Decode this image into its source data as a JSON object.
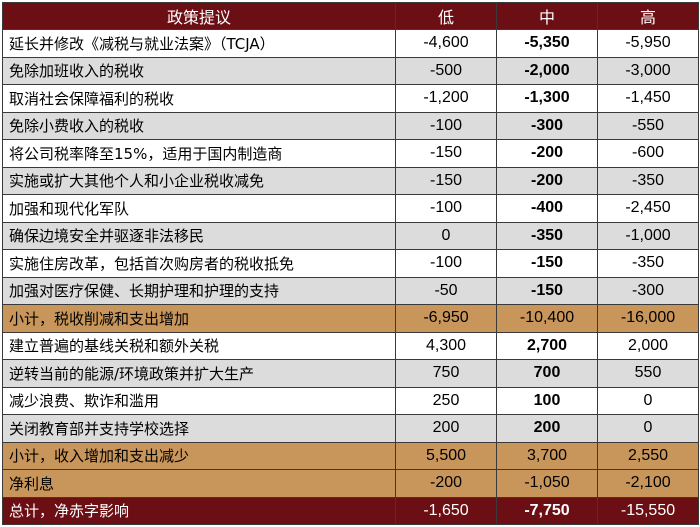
{
  "headers": [
    "政策提议",
    "低",
    "中",
    "高"
  ],
  "rows": [
    {
      "label": "延长并修改《减税与就业法案》（TCJA）",
      "low": "-4,600",
      "mid": "-5,350",
      "high": "-5,950",
      "style": "white",
      "mid_bold": true
    },
    {
      "label": "免除加班收入的税收",
      "low": "-500",
      "mid": "-2,000",
      "high": "-3,000",
      "style": "grey",
      "mid_bold": true
    },
    {
      "label": "取消社会保障福利的税收",
      "low": "-1,200",
      "mid": "-1,300",
      "high": "-1,450",
      "style": "white",
      "mid_bold": true
    },
    {
      "label": "免除小费收入的税收",
      "low": "-100",
      "mid": "-300",
      "high": "-550",
      "style": "grey",
      "mid_bold": true
    },
    {
      "label": "将公司税率降至15%，适用于国内制造商",
      "low": "-150",
      "mid": "-200",
      "high": "-600",
      "style": "white",
      "mid_bold": true
    },
    {
      "label": "实施或扩大其他个人和小企业税收减免",
      "low": "-150",
      "mid": "-200",
      "high": "-350",
      "style": "grey",
      "mid_bold": true
    },
    {
      "label": "加强和现代化军队",
      "low": "-100",
      "mid": "-400",
      "high": "-2,450",
      "style": "white",
      "mid_bold": true
    },
    {
      "label": "确保边境安全并驱逐非法移民",
      "low": "0",
      "mid": "-350",
      "high": "-1,000",
      "style": "grey",
      "mid_bold": true
    },
    {
      "label": "实施住房改革，包括首次购房者的税收抵免",
      "low": "-100",
      "mid": "-150",
      "high": "-350",
      "style": "white",
      "mid_bold": true
    },
    {
      "label": "加强对医疗保健、长期护理和护理的支持",
      "low": "-50",
      "mid": "-150",
      "high": "-300",
      "style": "grey",
      "mid_bold": true
    },
    {
      "label": "小计，税收削减和支出增加",
      "low": "-6,950",
      "mid": "-10,400",
      "high": "-16,000",
      "style": "gold",
      "mid_bold": false
    },
    {
      "label": "建立普遍的基线关税和额外关税",
      "low": "4,300",
      "mid": "2,700",
      "high": "2,000",
      "style": "white",
      "mid_bold": true
    },
    {
      "label": "逆转当前的能源/环境政策并扩大生产",
      "low": "750",
      "mid": "700",
      "high": "550",
      "style": "grey",
      "mid_bold": true
    },
    {
      "label": "减少浪费、欺诈和滥用",
      "low": "250",
      "mid": "100",
      "high": "0",
      "style": "white",
      "mid_bold": true
    },
    {
      "label": "关闭教育部并支持学校选择",
      "low": "200",
      "mid": "200",
      "high": "0",
      "style": "grey",
      "mid_bold": true
    },
    {
      "label": "小计，收入增加和支出减少",
      "low": "5,500",
      "mid": "3,700",
      "high": "2,550",
      "style": "gold",
      "mid_bold": false
    },
    {
      "label": "净利息",
      "low": "-200",
      "mid": "-1,050",
      "high": "-2,100",
      "style": "gold",
      "mid_bold": false
    },
    {
      "label": "总计，净赤字影响",
      "low": "-1,650",
      "mid": "-7,750",
      "high": "-15,550",
      "style": "total",
      "mid_bold": true
    }
  ]
}
